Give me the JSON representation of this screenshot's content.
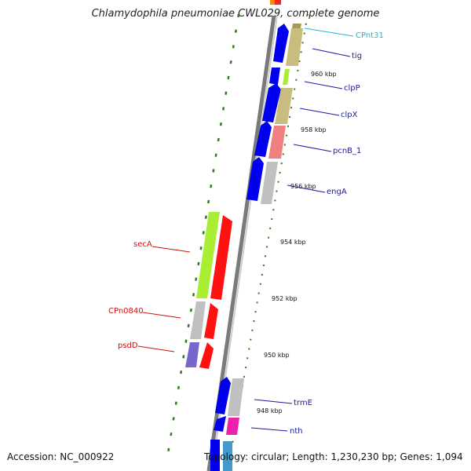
{
  "title": "Chlamydophila pneumoniae CWL029, complete genome",
  "footer": {
    "accession": "Accession: NC_000922",
    "summary": "Topology: circular; Length: 1,230,230 bp; Genes: 1,094"
  },
  "colors": {
    "forward_cds": "#0000ee",
    "backbone": "#888888",
    "ticks": "#2e7d1e",
    "label_blue": "#1a1aa0",
    "label_red": "#cc1111",
    "label_cyan": "#1fb8d8"
  },
  "ticks": [
    "960 kbp",
    "958 kbp",
    "956 kbp",
    "954 kbp",
    "952 kbp",
    "950 kbp",
    "948 kbp"
  ],
  "features": [
    {
      "name": "CPnt31",
      "color": "#22b8d8"
    },
    {
      "name": "tig",
      "color": "#1a1aa0"
    },
    {
      "name": "clpP",
      "color": "#1a1aa0"
    },
    {
      "name": "clpX",
      "color": "#1a1aa0"
    },
    {
      "name": "pcnB_1",
      "color": "#1a1aa0"
    },
    {
      "name": "engA",
      "color": "#1a1aa0"
    },
    {
      "name": "secA",
      "color": "#cc1111"
    },
    {
      "name": "CPn0840",
      "color": "#cc1111"
    },
    {
      "name": "psdD",
      "color": "#cc1111"
    },
    {
      "name": "trmE",
      "color": "#1a1aa0"
    },
    {
      "name": "nth",
      "color": "#1a1aa0"
    }
  ]
}
